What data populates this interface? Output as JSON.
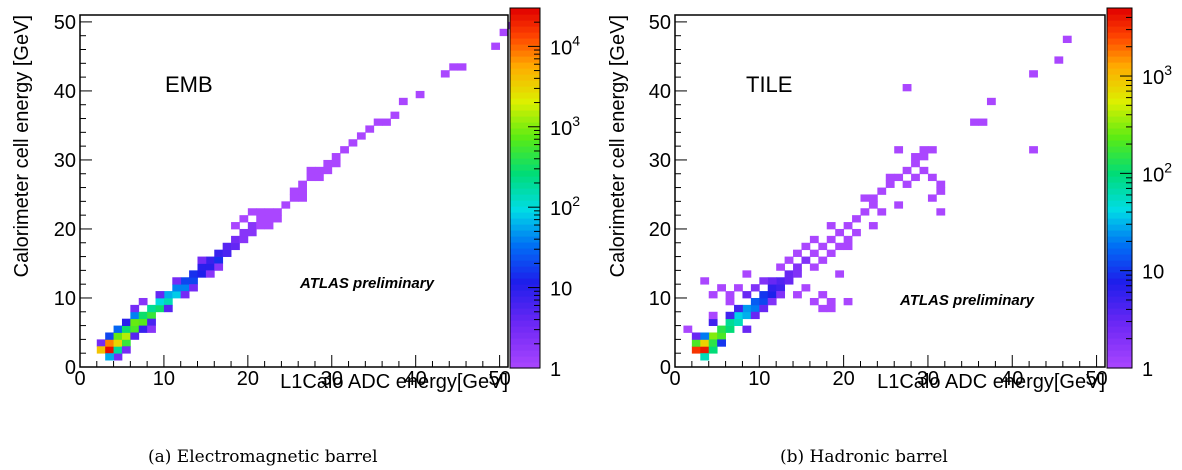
{
  "chart_data": [
    {
      "type": "heatmap",
      "panel_label": "EMB",
      "annotation": "ATLAS preliminary",
      "caption": "(a) Electromagnetic barrel",
      "xlabel": "L1Calo ADC energy[GeV]",
      "ylabel": "Calorimeter cell energy [GeV]",
      "xlim": [
        0,
        51
      ],
      "ylim": [
        0,
        51
      ],
      "x_ticks": [
        "0",
        "10",
        "20",
        "30",
        "40",
        "50"
      ],
      "y_ticks": [
        "0",
        "10",
        "20",
        "30",
        "40",
        "50"
      ],
      "colorbar": {
        "scale": "log",
        "range": [
          1,
          30000
        ],
        "ticks": [
          "1",
          "10",
          "10^2",
          "10^3",
          "10^4"
        ]
      },
      "bin_width": 1,
      "cells": [
        [
          2,
          3,
          3
        ],
        [
          2,
          2,
          4000
        ],
        [
          3,
          2,
          25000
        ],
        [
          3,
          3,
          8000
        ],
        [
          3,
          4,
          20
        ],
        [
          4,
          1,
          3
        ],
        [
          4,
          2,
          200
        ],
        [
          4,
          3,
          3000
        ],
        [
          4,
          4,
          800
        ],
        [
          4,
          5,
          30
        ],
        [
          5,
          3,
          500
        ],
        [
          5,
          4,
          1500
        ],
        [
          5,
          5,
          300
        ],
        [
          5,
          6,
          10
        ],
        [
          3,
          1,
          60
        ],
        [
          6,
          5,
          600
        ],
        [
          6,
          6,
          800
        ],
        [
          6,
          7,
          40
        ],
        [
          7,
          6,
          700
        ],
        [
          7,
          7,
          300
        ],
        [
          8,
          7,
          500
        ],
        [
          8,
          8,
          200
        ],
        [
          9,
          8,
          300
        ],
        [
          9,
          9,
          100
        ],
        [
          10,
          9,
          150
        ],
        [
          10,
          10,
          60
        ],
        [
          11,
          10,
          80
        ],
        [
          11,
          11,
          40
        ],
        [
          12,
          11,
          40
        ],
        [
          12,
          12,
          20
        ],
        [
          13,
          12,
          20
        ],
        [
          13,
          13,
          15
        ],
        [
          14,
          13,
          12
        ],
        [
          14,
          14,
          10
        ],
        [
          15,
          14,
          10
        ],
        [
          15,
          15,
          8
        ],
        [
          16,
          15,
          15
        ],
        [
          16,
          16,
          8
        ],
        [
          17,
          16,
          6
        ],
        [
          17,
          17,
          5
        ],
        [
          18,
          17,
          4
        ],
        [
          18,
          18,
          3
        ],
        [
          5,
          2,
          3
        ],
        [
          6,
          4,
          5
        ],
        [
          7,
          5,
          8
        ],
        [
          6,
          8,
          3
        ],
        [
          8,
          6,
          6
        ],
        [
          9,
          10,
          4
        ],
        [
          10,
          8,
          5
        ],
        [
          11,
          12,
          3
        ],
        [
          12,
          10,
          3
        ],
        [
          13,
          11,
          3
        ],
        [
          14,
          15,
          3
        ],
        [
          15,
          13,
          2
        ],
        [
          16,
          14,
          2
        ],
        [
          8,
          5,
          2
        ],
        [
          7,
          9,
          2
        ],
        [
          19,
          18,
          2
        ],
        [
          19,
          19,
          2
        ],
        [
          20,
          19,
          2
        ],
        [
          20,
          20,
          2
        ],
        [
          21,
          20,
          1
        ],
        [
          21,
          21,
          1
        ],
        [
          22,
          21,
          1
        ],
        [
          23,
          21,
          1
        ],
        [
          24,
          23,
          1
        ],
        [
          23,
          22,
          1
        ],
        [
          22,
          22,
          1
        ],
        [
          25,
          24,
          1
        ],
        [
          25,
          25,
          1
        ],
        [
          26,
          25,
          1
        ],
        [
          26,
          26,
          1
        ],
        [
          27,
          27,
          1
        ],
        [
          28,
          27,
          1
        ],
        [
          28,
          28,
          1
        ],
        [
          29,
          28,
          1
        ],
        [
          29,
          29,
          1
        ],
        [
          30,
          29,
          1
        ],
        [
          19,
          21,
          1
        ],
        [
          20,
          22,
          1
        ],
        [
          21,
          22,
          1
        ],
        [
          22,
          20,
          1
        ],
        [
          18,
          20,
          1
        ],
        [
          27,
          28,
          1
        ],
        [
          30,
          30,
          1
        ],
        [
          26,
          24,
          1
        ],
        [
          31,
          31,
          1
        ],
        [
          32,
          32,
          1
        ],
        [
          33,
          33,
          1
        ],
        [
          34,
          34,
          1
        ],
        [
          35,
          35,
          1
        ],
        [
          36,
          35,
          1
        ],
        [
          37,
          36,
          1
        ],
        [
          38,
          38,
          1
        ],
        [
          40,
          39,
          1
        ],
        [
          43,
          42,
          1
        ],
        [
          44,
          43,
          1
        ],
        [
          45,
          43,
          1
        ],
        [
          49,
          46,
          1
        ],
        [
          50,
          48,
          1
        ],
        [
          51,
          49,
          1
        ]
      ]
    },
    {
      "type": "heatmap",
      "panel_label": "TILE",
      "annotation": "ATLAS preliminary",
      "caption": "(b) Hadronic barrel",
      "xlabel": "L1Calo ADC energy[GeV]",
      "ylabel": "Calorimeter cell energy [GeV]",
      "xlim": [
        0,
        51
      ],
      "ylim": [
        0,
        51
      ],
      "x_ticks": [
        "0",
        "10",
        "20",
        "30",
        "40",
        "50"
      ],
      "y_ticks": [
        "0",
        "10",
        "20",
        "30",
        "40",
        "50"
      ],
      "colorbar": {
        "scale": "log",
        "range": [
          1,
          5000
        ],
        "ticks": [
          "1",
          "10",
          "10^2",
          "10^3"
        ]
      },
      "bin_width": 1,
      "cells": [
        [
          2,
          2,
          3000
        ],
        [
          3,
          2,
          4000
        ],
        [
          2,
          3,
          200
        ],
        [
          3,
          3,
          800
        ],
        [
          4,
          4,
          300
        ],
        [
          3,
          1,
          60
        ],
        [
          4,
          2,
          100
        ],
        [
          1,
          5,
          1
        ],
        [
          2,
          4,
          3
        ],
        [
          3,
          4,
          20
        ],
        [
          4,
          3,
          150
        ],
        [
          5,
          4,
          200
        ],
        [
          5,
          5,
          150
        ],
        [
          6,
          5,
          100
        ],
        [
          6,
          6,
          80
        ],
        [
          7,
          6,
          60
        ],
        [
          7,
          7,
          40
        ],
        [
          8,
          7,
          30
        ],
        [
          8,
          8,
          25
        ],
        [
          9,
          8,
          20
        ],
        [
          9,
          9,
          15
        ],
        [
          10,
          9,
          12
        ],
        [
          10,
          10,
          10
        ],
        [
          11,
          10,
          8
        ],
        [
          11,
          11,
          6
        ],
        [
          12,
          11,
          5
        ],
        [
          12,
          12,
          4
        ],
        [
          13,
          12,
          3
        ],
        [
          13,
          13,
          3
        ],
        [
          14,
          13,
          2
        ],
        [
          14,
          14,
          2
        ],
        [
          3,
          12,
          1
        ],
        [
          4,
          10,
          1
        ],
        [
          5,
          11,
          1
        ],
        [
          6,
          9,
          1
        ],
        [
          7,
          11,
          1
        ],
        [
          8,
          13,
          1
        ],
        [
          6,
          7,
          5
        ],
        [
          7,
          8,
          5
        ],
        [
          8,
          10,
          3
        ],
        [
          9,
          7,
          3
        ],
        [
          10,
          8,
          3
        ],
        [
          11,
          12,
          3
        ],
        [
          12,
          10,
          2
        ],
        [
          5,
          3,
          10
        ],
        [
          4,
          6,
          5
        ],
        [
          8,
          5,
          3
        ],
        [
          9,
          11,
          2
        ],
        [
          10,
          12,
          2
        ],
        [
          11,
          9,
          2
        ],
        [
          15,
          15,
          2
        ],
        [
          16,
          16,
          1
        ],
        [
          17,
          17,
          1
        ],
        [
          18,
          18,
          1
        ],
        [
          15,
          17,
          1
        ],
        [
          16,
          14,
          1
        ],
        [
          17,
          15,
          1
        ],
        [
          18,
          16,
          1
        ],
        [
          19,
          19,
          1
        ],
        [
          20,
          20,
          1
        ],
        [
          21,
          21,
          1
        ],
        [
          19,
          17,
          1
        ],
        [
          20,
          18,
          1
        ],
        [
          18,
          20,
          1
        ],
        [
          16,
          18,
          1
        ],
        [
          14,
          16,
          1
        ],
        [
          13,
          15,
          1
        ],
        [
          12,
          14,
          1
        ],
        [
          22,
          22,
          1
        ],
        [
          23,
          23,
          1
        ],
        [
          23,
          24,
          1
        ],
        [
          24,
          25,
          1
        ],
        [
          25,
          26,
          1
        ],
        [
          26,
          27,
          1
        ],
        [
          25,
          27,
          1
        ],
        [
          27,
          28,
          1
        ],
        [
          28,
          29,
          1
        ],
        [
          29,
          30,
          1
        ],
        [
          30,
          31,
          1
        ],
        [
          26,
          31,
          1
        ],
        [
          22,
          24,
          1
        ],
        [
          24,
          22,
          1
        ],
        [
          27,
          26,
          1
        ],
        [
          28,
          27,
          1
        ],
        [
          21,
          19,
          1
        ],
        [
          20,
          17,
          1
        ],
        [
          19,
          13,
          1
        ],
        [
          18,
          9,
          1
        ],
        [
          18,
          8,
          1
        ],
        [
          17,
          8,
          1
        ],
        [
          20,
          9,
          1
        ],
        [
          17,
          10,
          1
        ],
        [
          15,
          11,
          1
        ],
        [
          14,
          10,
          1
        ],
        [
          16,
          9,
          1
        ],
        [
          6,
          10,
          1
        ],
        [
          4,
          7,
          1
        ],
        [
          28,
          30,
          1
        ],
        [
          29,
          28,
          1
        ],
        [
          30,
          27,
          1
        ],
        [
          31,
          26,
          1
        ],
        [
          31,
          25,
          1
        ],
        [
          30,
          24,
          1
        ],
        [
          31,
          22,
          1
        ],
        [
          27,
          40,
          1
        ],
        [
          35,
          35,
          1
        ],
        [
          37,
          38,
          1
        ],
        [
          36,
          35,
          1
        ],
        [
          42,
          42,
          1
        ],
        [
          42,
          31,
          1
        ],
        [
          45,
          44,
          1
        ],
        [
          46,
          47,
          1
        ],
        [
          26,
          23,
          1
        ],
        [
          23,
          20,
          1
        ],
        [
          29,
          31,
          1
        ]
      ]
    }
  ]
}
